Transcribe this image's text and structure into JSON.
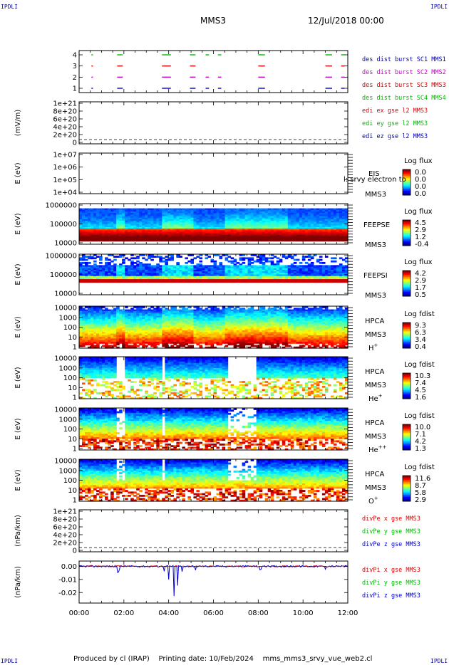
{
  "header": {
    "mission": "MMS3",
    "date": "12/Jul/2018 00:00",
    "corner_label": "IPDLI"
  },
  "footer": {
    "produced_by": "Produced by cl (IRAP)",
    "printing_date": "Printing date: 10/Feb/2024",
    "file": "mms_mms3_srvy_vue_web2.cl"
  },
  "chart_data": {
    "type": "heatmap",
    "x_ticks": [
      "00:00",
      "02:00",
      "04:00",
      "06:00",
      "08:00",
      "10:00",
      "12:00"
    ],
    "xlim_hours": [
      0,
      12
    ],
    "panels": [
      {
        "id": "burst",
        "kind": "burst",
        "ytick_labels": [
          "1",
          "2",
          "3",
          "4"
        ],
        "legend": [
          {
            "text": "des dist burst SC1 MMS1",
            "color": "#0000cc"
          },
          {
            "text": "des dist burst SC2 MMS2",
            "color": "#cc00cc"
          },
          {
            "text": "des dist burst SC3 MMS3",
            "color": "#dd0000"
          },
          {
            "text": "des dist burst SC4 MMS4",
            "color": "#00bb00"
          }
        ],
        "intervals_hours": [
          [
            0.55,
            0.62
          ],
          [
            1.7,
            1.95
          ],
          [
            3.7,
            4.1
          ],
          [
            4.95,
            5.2
          ],
          [
            5.65,
            5.8
          ],
          [
            6.2,
            6.35
          ],
          [
            8.0,
            8.3
          ],
          [
            11.0,
            11.3
          ],
          [
            11.7,
            11.85
          ]
        ],
        "mms3_intervals_hours": [
          [
            0.55,
            0.6
          ],
          [
            1.7,
            1.95
          ],
          [
            3.7,
            3.95
          ],
          [
            4.95,
            5.2
          ],
          [
            8.0,
            8.3
          ],
          [
            11.0,
            11.3
          ],
          [
            11.7,
            11.8
          ]
        ]
      },
      {
        "id": "edi",
        "kind": "empty_line",
        "ylabel": "(mV/m)",
        "ytick_labels": [
          "1e+21",
          "8e+20",
          "6e+20",
          "4e+20",
          "2e+20",
          "0"
        ],
        "legend": [
          {
            "text": "edi ex gse l2 MMS3",
            "color": "#dd0000"
          },
          {
            "text": "edi ey gse l2 MMS3",
            "color": "#00bb00"
          },
          {
            "text": "edi ez gse l2 MMS3",
            "color": "#0000cc"
          }
        ]
      },
      {
        "id": "eis",
        "kind": "spec",
        "ylabel": "E (eV)",
        "ytick_labels": [
          "1e+07",
          "1e+06",
          "1e+05",
          "1e+04"
        ],
        "instrument": [
          "EIS",
          "MMS3"
        ],
        "overlay_text": "l: srvy electron to",
        "cbar": {
          "title": "Log flux",
          "ticks": [
            "0.0",
            "0.0",
            "0.0",
            "0.0"
          ]
        }
      },
      {
        "id": "feepse",
        "kind": "spec",
        "ylabel": "E (eV)",
        "ytick_labels": [
          "1000000",
          "100000",
          "10000"
        ],
        "instrument": [
          "FEEPSE",
          "MMS3"
        ],
        "cbar": {
          "title": "Log flux",
          "ticks": [
            "4.5",
            "2.9",
            "1.2",
            "-0.4"
          ]
        }
      },
      {
        "id": "feepsi",
        "kind": "spec",
        "ylabel": "E (eV)",
        "ytick_labels": [
          "1000000",
          "100000",
          "10000"
        ],
        "instrument": [
          "FEEPSI",
          "MMS3"
        ],
        "cbar": {
          "title": "Log flux",
          "ticks": [
            "4.2",
            "2.9",
            "1.7",
            "0.5"
          ]
        }
      },
      {
        "id": "hpca_h",
        "kind": "spec",
        "ylabel": "E (eV)",
        "ytick_labels": [
          "10000",
          "1000",
          "100",
          "10",
          "1"
        ],
        "instrument": [
          "HPCA",
          "MMS3"
        ],
        "species": "H",
        "species_sup": "+",
        "cbar": {
          "title": "Log fdist",
          "ticks": [
            "9.3",
            "6.3",
            "3.4",
            "0.4"
          ]
        }
      },
      {
        "id": "hpca_he",
        "kind": "spec",
        "ylabel": "E (eV)",
        "ytick_labels": [
          "10000",
          "1000",
          "100",
          "10",
          "1"
        ],
        "instrument": [
          "HPCA",
          "MMS3"
        ],
        "species": "He",
        "species_sup": "+",
        "cbar": {
          "title": "Log fdist",
          "ticks": [
            "10.3",
            "7.4",
            "4.5",
            "1.6"
          ]
        }
      },
      {
        "id": "hpca_hepp",
        "kind": "spec",
        "ylabel": "E (eV)",
        "ytick_labels": [
          "10000",
          "1000",
          "100",
          "10",
          "1"
        ],
        "instrument": [
          "HPCA",
          "MMS3"
        ],
        "species": "He",
        "species_sup": "++",
        "cbar": {
          "title": "Log fdist",
          "ticks": [
            "10.0",
            "7.1",
            "4.2",
            "1.3"
          ]
        }
      },
      {
        "id": "hpca_o",
        "kind": "spec",
        "ylabel": "E (eV)",
        "ytick_labels": [
          "10000",
          "1000",
          "100",
          "10",
          "1"
        ],
        "instrument": [
          "HPCA",
          "MMS3"
        ],
        "species": "O",
        "species_sup": "+",
        "cbar": {
          "title": "Log fdist",
          "ticks": [
            "11.6",
            "8.7",
            "5.8",
            "2.9"
          ]
        }
      },
      {
        "id": "divpe",
        "kind": "empty_line",
        "ylabel": "(nPa/km)",
        "ytick_labels": [
          "1e+21",
          "8e+20",
          "6e+20",
          "4e+20",
          "2e+20",
          "0"
        ],
        "legend": [
          {
            "text": "divPe x gse MMS3",
            "color": "#dd0000"
          },
          {
            "text": "divPe y gse MMS3",
            "color": "#00bb00"
          },
          {
            "text": "divPe z gse MMS3",
            "color": "#0000cc"
          }
        ]
      },
      {
        "id": "divpi",
        "kind": "line",
        "ylabel": "(nPa/km)",
        "ytick_labels": [
          "0.00",
          "-0.01",
          "-0.02"
        ],
        "ylim": [
          -0.028,
          0.004
        ],
        "legend": [
          {
            "text": "divPi x gse MMS3",
            "color": "#dd0000"
          },
          {
            "text": "divPi y gse MMS3",
            "color": "#00bb00"
          },
          {
            "text": "divPi z gse MMS3",
            "color": "#0000cc"
          }
        ],
        "spikes_hours": [
          [
            1.75,
            -0.006
          ],
          [
            1.8,
            -0.003
          ],
          [
            3.8,
            -0.004
          ],
          [
            4.0,
            -0.012
          ],
          [
            4.25,
            -0.024
          ],
          [
            4.4,
            -0.018
          ],
          [
            4.6,
            -0.005
          ],
          [
            5.2,
            -0.003
          ],
          [
            8.1,
            -0.003
          ],
          [
            11.0,
            -0.003
          ]
        ]
      }
    ]
  }
}
